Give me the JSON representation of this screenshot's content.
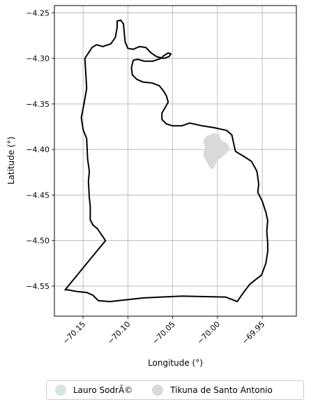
{
  "axes": {
    "xlabel": "Longitude (°)",
    "ylabel": "Latitude (°)",
    "xlim": [
      -70.182,
      -69.912
    ],
    "ylim": [
      -4.583,
      -4.242
    ],
    "grid": true,
    "xticks": [
      {
        "value": -70.15,
        "label": "−70.15"
      },
      {
        "value": -70.1,
        "label": "−70.10"
      },
      {
        "value": -70.05,
        "label": "−70.05"
      },
      {
        "value": -70.0,
        "label": "−70.00"
      },
      {
        "value": -69.95,
        "label": "−69.95"
      }
    ],
    "yticks": [
      {
        "value": -4.25,
        "label": "−4.25"
      },
      {
        "value": -4.3,
        "label": "−4.30"
      },
      {
        "value": -4.35,
        "label": "−4.35"
      },
      {
        "value": -4.4,
        "label": "−4.40"
      },
      {
        "value": -4.45,
        "label": "−4.45"
      },
      {
        "value": -4.5,
        "label": "−4.50"
      },
      {
        "value": -4.55,
        "label": "−4.55"
      }
    ]
  },
  "legend": {
    "placement": "bottom-center",
    "items": [
      {
        "label": "Lauro SodrÃ©",
        "color": "#cfe9dc"
      },
      {
        "label": "Tikuna de Santo Antonio",
        "color": "#d9d9d9"
      }
    ]
  },
  "map_data": {
    "outline_color": "#000000",
    "fill_color": "#d9d9d9",
    "boundary": [
      [
        -70.125,
        -4.5
      ],
      [
        -70.134,
        -4.487
      ],
      [
        -70.139,
        -4.483
      ],
      [
        -70.142,
        -4.477
      ],
      [
        -70.142,
        -4.462
      ],
      [
        -70.143,
        -4.453
      ],
      [
        -70.144,
        -4.435
      ],
      [
        -70.143,
        -4.424
      ],
      [
        -70.145,
        -4.41
      ],
      [
        -70.146,
        -4.388
      ],
      [
        -70.15,
        -4.378
      ],
      [
        -70.152,
        -4.365
      ],
      [
        -70.149,
        -4.35
      ],
      [
        -70.146,
        -4.333
      ],
      [
        -70.147,
        -4.316
      ],
      [
        -70.148,
        -4.3
      ],
      [
        -70.14,
        -4.288
      ],
      [
        -70.135,
        -4.285
      ],
      [
        -70.128,
        -4.287
      ],
      [
        -70.119,
        -4.284
      ],
      [
        -70.114,
        -4.277
      ],
      [
        -70.112,
        -4.266
      ],
      [
        -70.112,
        -4.259
      ],
      [
        -70.108,
        -4.258
      ],
      [
        -70.105,
        -4.262
      ],
      [
        -70.104,
        -4.272
      ],
      [
        -70.103,
        -4.282
      ],
      [
        -70.1,
        -4.289
      ],
      [
        -70.094,
        -4.29
      ],
      [
        -70.087,
        -4.287
      ],
      [
        -70.08,
        -4.288
      ],
      [
        -70.074,
        -4.294
      ],
      [
        -70.068,
        -4.298
      ],
      [
        -70.06,
        -4.3
      ],
      [
        -70.054,
        -4.298
      ],
      [
        -70.052,
        -4.295
      ],
      [
        -70.055,
        -4.294
      ],
      [
        -70.06,
        -4.297
      ],
      [
        -70.063,
        -4.3
      ],
      [
        -70.072,
        -4.303
      ],
      [
        -70.082,
        -4.303
      ],
      [
        -70.089,
        -4.301
      ],
      [
        -70.094,
        -4.302
      ],
      [
        -70.096,
        -4.31
      ],
      [
        -70.095,
        -4.318
      ],
      [
        -70.09,
        -4.323
      ],
      [
        -70.083,
        -4.326
      ],
      [
        -70.073,
        -4.327
      ],
      [
        -70.065,
        -4.33
      ],
      [
        -70.06,
        -4.336
      ],
      [
        -70.057,
        -4.341
      ],
      [
        -70.055,
        -4.348
      ],
      [
        -70.059,
        -4.355
      ],
      [
        -70.062,
        -4.36
      ],
      [
        -70.062,
        -4.367
      ],
      [
        -70.057,
        -4.372
      ],
      [
        -70.05,
        -4.374
      ],
      [
        -70.04,
        -4.374
      ],
      [
        -70.031,
        -4.371
      ],
      [
        -70.017,
        -4.374
      ],
      [
        -70.004,
        -4.376
      ],
      [
        -69.99,
        -4.379
      ],
      [
        -69.984,
        -4.384
      ],
      [
        -69.982,
        -4.393
      ],
      [
        -69.98,
        -4.402
      ],
      [
        -69.97,
        -4.408
      ],
      [
        -69.962,
        -4.413
      ],
      [
        -69.956,
        -4.424
      ],
      [
        -69.954,
        -4.438
      ],
      [
        -69.955,
        -4.447
      ],
      [
        -69.95,
        -4.457
      ],
      [
        -69.946,
        -4.469
      ],
      [
        -69.944,
        -4.478
      ],
      [
        -69.945,
        -4.49
      ],
      [
        -69.944,
        -4.503
      ],
      [
        -69.944,
        -4.512
      ],
      [
        -69.946,
        -4.525
      ],
      [
        -69.951,
        -4.538
      ],
      [
        -69.955,
        -4.541
      ],
      [
        -69.964,
        -4.548
      ],
      [
        -69.971,
        -4.557
      ],
      [
        -69.978,
        -4.567
      ],
      [
        -69.991,
        -4.562
      ],
      [
        -70.04,
        -4.561
      ],
      [
        -70.083,
        -4.563
      ],
      [
        -70.12,
        -4.567
      ],
      [
        -70.133,
        -4.566
      ],
      [
        -70.139,
        -4.56
      ],
      [
        -70.146,
        -4.557
      ],
      [
        -70.156,
        -4.556
      ],
      [
        -70.162,
        -4.555
      ],
      [
        -70.167,
        -4.554
      ],
      [
        -70.17,
        -4.554
      ],
      [
        -70.125,
        -4.5
      ]
    ],
    "territory": [
      [
        -70.012,
        -4.385
      ],
      [
        -70.004,
        -4.382
      ],
      [
        -69.998,
        -4.384
      ],
      [
        -69.996,
        -4.39
      ],
      [
        -69.989,
        -4.393
      ],
      [
        -69.986,
        -4.4
      ],
      [
        -69.993,
        -4.407
      ],
      [
        -70.0,
        -4.412
      ],
      [
        -70.004,
        -4.42
      ],
      [
        -70.007,
        -4.422
      ],
      [
        -70.012,
        -4.414
      ],
      [
        -70.016,
        -4.406
      ],
      [
        -70.014,
        -4.397
      ],
      [
        -70.016,
        -4.39
      ],
      [
        -70.012,
        -4.385
      ]
    ]
  }
}
